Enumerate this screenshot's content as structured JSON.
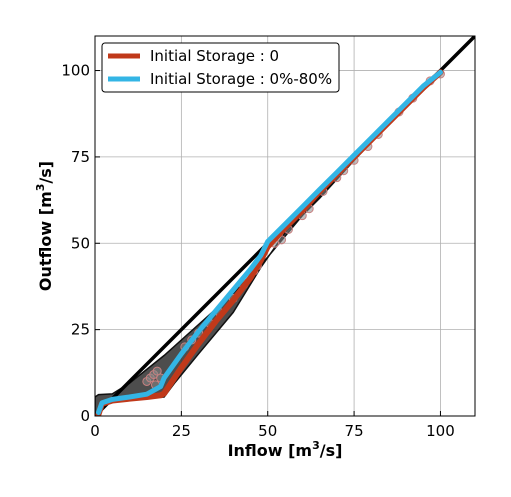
{
  "chart_data": {
    "type": "line",
    "title": "",
    "xlabel": "Inflow [m",
    "xlabel_sup": "3",
    "xlabel_tail": "/s]",
    "ylabel": "Outflow [m",
    "ylabel_sup": "3",
    "ylabel_tail": "/s]",
    "xlim": [
      0,
      110
    ],
    "ylim": [
      0,
      110
    ],
    "xticks": [
      0,
      25,
      50,
      75,
      100
    ],
    "yticks": [
      0,
      25,
      50,
      75,
      100
    ],
    "grid": true,
    "legend_position": "top-left",
    "reference_line": {
      "x": [
        0,
        110
      ],
      "y": [
        0,
        110
      ],
      "color": "#000000"
    },
    "envelope": {
      "upper": [
        [
          0,
          5.5
        ],
        [
          1,
          6.2
        ],
        [
          5,
          6.4
        ],
        [
          10,
          9.5
        ],
        [
          20,
          17.5
        ],
        [
          30,
          26.5
        ],
        [
          40,
          35.5
        ],
        [
          50,
          46
        ],
        [
          60,
          58
        ],
        [
          70,
          69
        ],
        [
          80,
          79.5
        ],
        [
          90,
          89.5
        ],
        [
          100,
          99.5
        ]
      ],
      "lower": [
        [
          0,
          0
        ],
        [
          2,
          3
        ],
        [
          5,
          4
        ],
        [
          15,
          5.2
        ],
        [
          20,
          5.5
        ],
        [
          23,
          9.5
        ],
        [
          30,
          18
        ],
        [
          40,
          30
        ],
        [
          48,
          43
        ],
        [
          55,
          53
        ],
        [
          65,
          63
        ],
        [
          75,
          74
        ],
        [
          85,
          84.5
        ],
        [
          100,
          99
        ]
      ],
      "color": "#3a3a3a"
    },
    "series": [
      {
        "name": "Initial Storage : 0",
        "color": "#c0391a",
        "x": [
          1,
          2,
          5,
          10,
          15,
          19,
          20,
          25,
          30,
          35,
          40,
          45,
          48,
          50,
          55,
          60,
          65,
          70,
          75,
          80,
          85,
          90,
          95,
          100
        ],
        "y": [
          0.5,
          3.5,
          4.5,
          5.0,
          5.5,
          6.0,
          6.5,
          14.0,
          21.0,
          27.5,
          33.5,
          40.0,
          45.0,
          49.0,
          54.5,
          59.5,
          65.0,
          70.0,
          75.0,
          80.0,
          85.0,
          90.0,
          95.0,
          99.5
        ]
      },
      {
        "name": "Initial Storage : 0%-80%",
        "color": "#33b5e5",
        "x": [
          1,
          2,
          5,
          10,
          15,
          19,
          20,
          25,
          30,
          35,
          40,
          45,
          48,
          50,
          55,
          60,
          65,
          70,
          75,
          80,
          85,
          90,
          95,
          100
        ],
        "y": [
          1.0,
          3.8,
          4.8,
          5.5,
          6.3,
          8.5,
          11.0,
          18.0,
          24.5,
          30.5,
          36.5,
          42.5,
          46.5,
          50.5,
          55.5,
          60.5,
          65.5,
          70.5,
          75.5,
          80.5,
          85.5,
          90.5,
          95.5,
          99.5
        ]
      }
    ],
    "scatter_points": [
      [
        15,
        10
      ],
      [
        16,
        11
      ],
      [
        17,
        12
      ],
      [
        18,
        13
      ],
      [
        17.5,
        9
      ],
      [
        19,
        11
      ],
      [
        26,
        20
      ],
      [
        28,
        22
      ],
      [
        30,
        24
      ],
      [
        33,
        27
      ],
      [
        36,
        30
      ],
      [
        40,
        34
      ],
      [
        43,
        38
      ],
      [
        46,
        42
      ],
      [
        47,
        43.5
      ],
      [
        52,
        50
      ],
      [
        54,
        51
      ],
      [
        56,
        54
      ],
      [
        60,
        58
      ],
      [
        62,
        60
      ],
      [
        66,
        65
      ],
      [
        70,
        69
      ],
      [
        72,
        71
      ],
      [
        75,
        74
      ],
      [
        79,
        78
      ],
      [
        82,
        81.5
      ],
      [
        88,
        88
      ],
      [
        92,
        92
      ],
      [
        97,
        97
      ],
      [
        100,
        99
      ]
    ]
  }
}
